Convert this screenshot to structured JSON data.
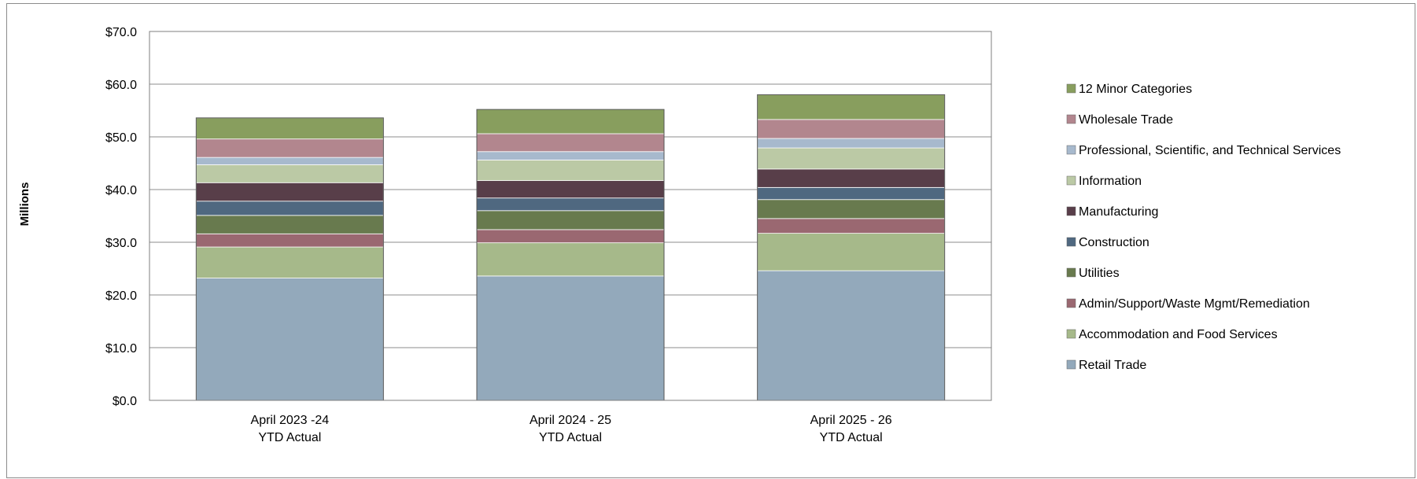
{
  "chart_data": {
    "type": "bar",
    "stacked": true,
    "title": "",
    "xlabel": "",
    "ylabel": "Millions",
    "ylim": [
      0,
      70
    ],
    "y_ticks": [
      "$0.0",
      "$10.0",
      "$20.0",
      "$30.0",
      "$40.0",
      "$50.0",
      "$60.0",
      "$70.0"
    ],
    "grid": true,
    "legend_position": "right",
    "categories": [
      [
        "April 2023 -24",
        "YTD Actual"
      ],
      [
        "April 2024 - 25",
        "YTD Actual"
      ],
      [
        "April 2025 - 26",
        "YTD Actual"
      ]
    ],
    "series": [
      {
        "name": "Retail Trade",
        "color": "#93A9BB",
        "values": [
          23.2,
          23.6,
          24.6
        ]
      },
      {
        "name": "Accommodation and Food Services",
        "color": "#A6B98A",
        "values": [
          5.9,
          6.3,
          7.1
        ]
      },
      {
        "name": "Admin/Support/Waste Mgmt/Remediation",
        "color": "#9A6871",
        "values": [
          2.5,
          2.5,
          2.8
        ]
      },
      {
        "name": "Utilities",
        "color": "#687A4E",
        "values": [
          3.5,
          3.6,
          3.6
        ]
      },
      {
        "name": "Construction",
        "color": "#4F6880",
        "values": [
          2.7,
          2.4,
          2.3
        ]
      },
      {
        "name": "Manufacturing",
        "color": "#583E49",
        "values": [
          3.5,
          3.3,
          3.5
        ]
      },
      {
        "name": "Information",
        "color": "#BBC9A5",
        "values": [
          3.4,
          3.9,
          4.0
        ]
      },
      {
        "name": "Professional, Scientific, and Technical Services",
        "color": "#A7B9CD",
        "values": [
          1.4,
          1.6,
          1.8
        ]
      },
      {
        "name": "Wholesale Trade",
        "color": "#B2868E",
        "values": [
          3.5,
          3.4,
          3.6
        ]
      },
      {
        "name": "12 Minor Categories",
        "color": "#889E5E",
        "values": [
          4.0,
          4.6,
          4.7
        ]
      }
    ]
  }
}
